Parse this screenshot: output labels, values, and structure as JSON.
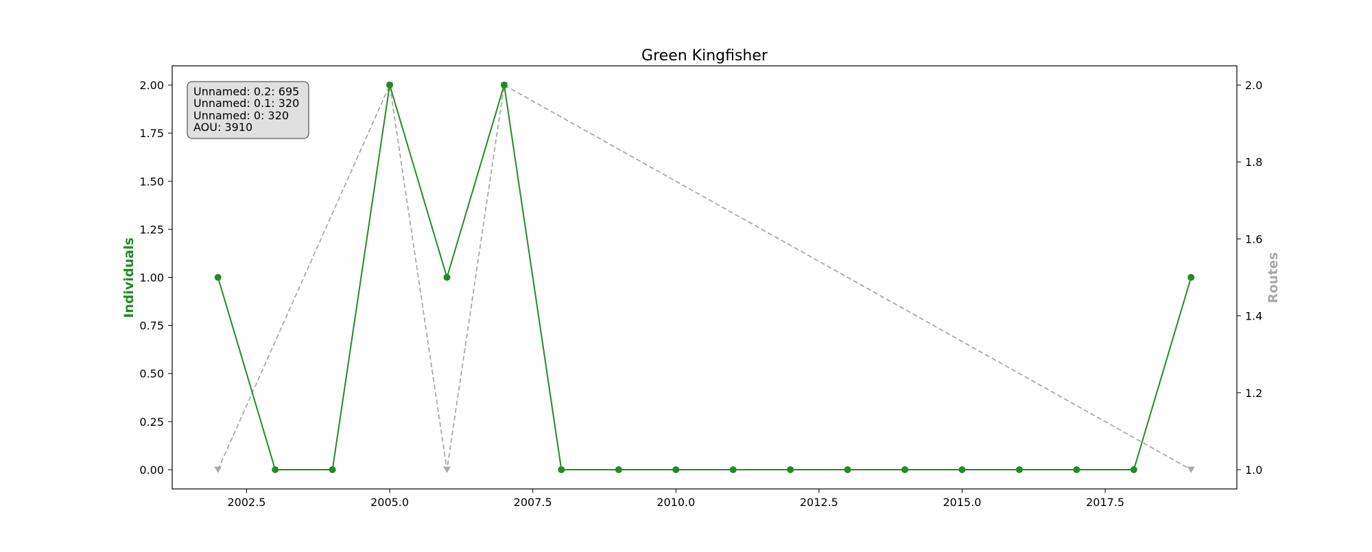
{
  "chart_data": {
    "type": "line",
    "title": "Green Kingfisher",
    "xlabel": "",
    "ylabel": "Individuals",
    "y2label": "Routes",
    "xlim": [
      2001.2,
      2019.8
    ],
    "ylim": [
      -0.1,
      2.1
    ],
    "y2lim": [
      0.95,
      2.05
    ],
    "x_ticks": [
      2002.5,
      2005.0,
      2007.5,
      2010.0,
      2012.5,
      2015.0,
      2017.5
    ],
    "x_tick_labels": [
      "2002.5",
      "2005.0",
      "2007.5",
      "2010.0",
      "2012.5",
      "2015.0",
      "2017.5"
    ],
    "y_ticks": [
      0.0,
      0.25,
      0.5,
      0.75,
      1.0,
      1.25,
      1.5,
      1.75,
      2.0
    ],
    "y_tick_labels": [
      "0.00",
      "0.25",
      "0.50",
      "0.75",
      "1.00",
      "1.25",
      "1.50",
      "1.75",
      "2.00"
    ],
    "y2_ticks": [
      1.0,
      1.2,
      1.4,
      1.6,
      1.8,
      2.0
    ],
    "y2_tick_labels": [
      "1.0",
      "1.2",
      "1.4",
      "1.6",
      "1.8",
      "2.0"
    ],
    "grid": false,
    "series": [
      {
        "axis": "left",
        "color": "#228B22",
        "style": "solid",
        "marker": "circle",
        "x": [
          2002,
          2003,
          2004,
          2005,
          2006,
          2007,
          2008,
          2009,
          2010,
          2011,
          2012,
          2013,
          2014,
          2015,
          2016,
          2017,
          2018,
          2019
        ],
        "values": [
          1,
          0,
          0,
          2,
          1,
          2,
          0,
          0,
          0,
          0,
          0,
          0,
          0,
          0,
          0,
          0,
          0,
          1
        ]
      },
      {
        "axis": "right",
        "color": "#A9A9A9",
        "style": "dashed",
        "marker": "triangle-down",
        "x": [
          2002,
          2005,
          2006,
          2007,
          2019
        ],
        "values": [
          1,
          2,
          1,
          2,
          1
        ]
      }
    ],
    "info_box": {
      "placement": "top-left",
      "lines": [
        "Unnamed: 0.2: 695",
        "Unnamed: 0.1: 320",
        "Unnamed: 0: 320",
        "AOU: 3910"
      ]
    }
  }
}
